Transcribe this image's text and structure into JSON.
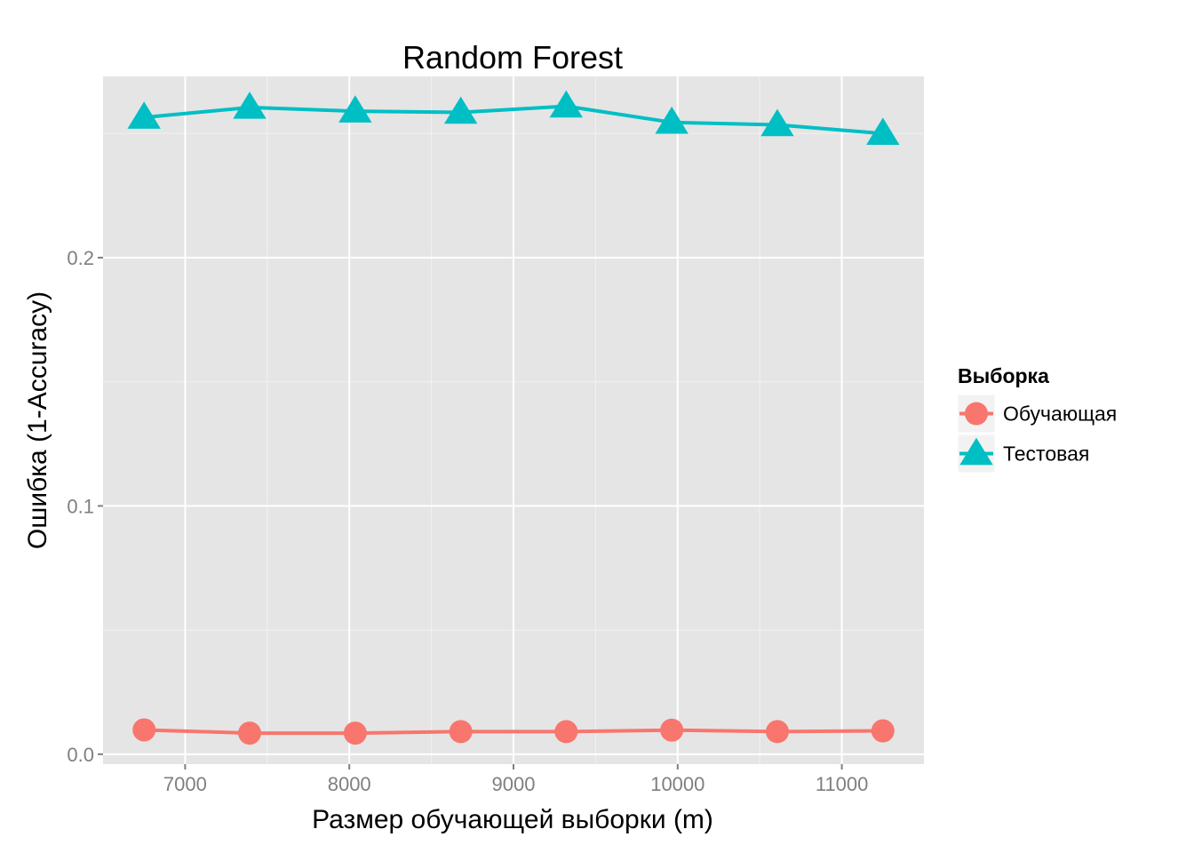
{
  "chart_data": {
    "type": "line",
    "title": "Random Forest",
    "xlabel": "Размер обучающей выборки (m)",
    "ylabel": "Ошибка (1-Accuracy)",
    "xlim": [
      6500,
      11500
    ],
    "ylim": [
      -0.004,
      0.273
    ],
    "x_ticks": [
      7000,
      8000,
      9000,
      10000,
      11000
    ],
    "y_ticks": [
      0.0,
      0.1,
      0.2
    ],
    "x_tick_labels": [
      "7000",
      "8000",
      "9000",
      "10000",
      "11000"
    ],
    "y_tick_labels": [
      "0.0",
      "0.1",
      "0.2"
    ],
    "grid": true,
    "legend": {
      "title": "Выборка",
      "placement": "right"
    },
    "x": [
      6750,
      7393,
      8036,
      8679,
      9321,
      9964,
      10607,
      11250
    ],
    "series": [
      {
        "name": "Обучающая",
        "color": "#F8766D",
        "marker": "circle",
        "values": [
          0.0098,
          0.0085,
          0.0085,
          0.0091,
          0.0091,
          0.0097,
          0.0091,
          0.0094
        ]
      },
      {
        "name": "Тестовая",
        "color": "#00BFC4",
        "marker": "triangle",
        "values": [
          0.2565,
          0.2605,
          0.259,
          0.2585,
          0.261,
          0.2545,
          0.2535,
          0.25
        ]
      }
    ]
  }
}
